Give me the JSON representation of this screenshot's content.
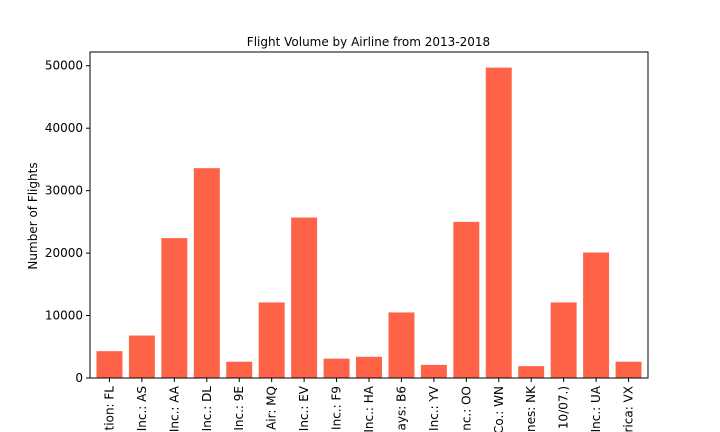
{
  "chart_data": {
    "type": "bar",
    "title": "Flight Volume by Airline from 2013-2018",
    "xlabel": "",
    "ylabel": "Number of Flights",
    "ylim": [
      0,
      52200
    ],
    "yticks": [
      0,
      10000,
      20000,
      30000,
      40000,
      50000
    ],
    "grid": false,
    "bar_color": "#ff6347",
    "categories": [
      "tion: FL",
      "Inc.: AS",
      "Inc.: AA",
      "Inc.: DL",
      "Inc.: 9E",
      "Air: MQ",
      "Inc.: EV",
      "Inc.: F9",
      "Inc.: HA",
      "ays: B6",
      "Inc.: YV",
      "nc.: OO",
      "Co.: WN",
      "nes: NK",
      "10/07.)",
      "Inc.: UA",
      "rica: VX"
    ],
    "values": [
      4300,
      6800,
      22400,
      33600,
      2600,
      12100,
      25700,
      3100,
      3400,
      10500,
      2100,
      25000,
      49700,
      1900,
      12100,
      20100,
      2600
    ]
  }
}
